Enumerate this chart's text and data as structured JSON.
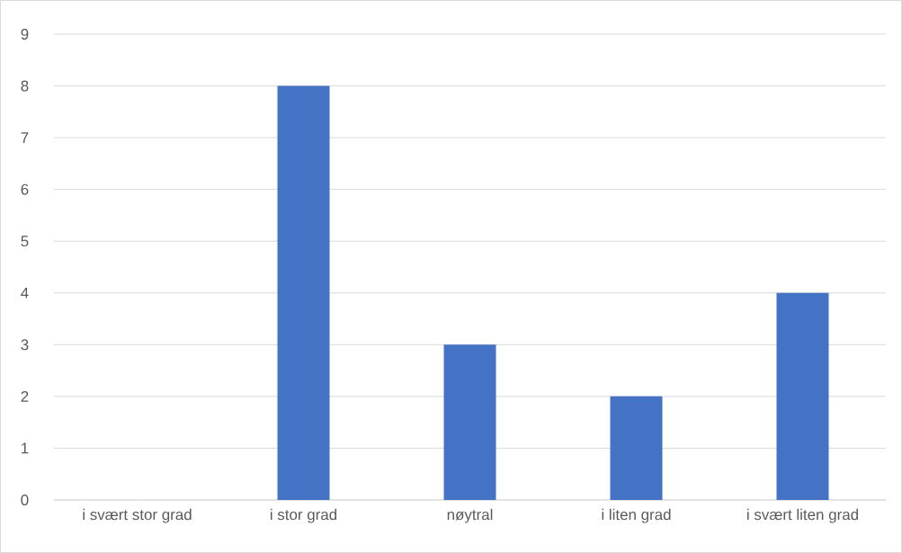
{
  "chart_data": {
    "type": "bar",
    "categories": [
      "i svært stor grad",
      "i stor grad",
      "nøytral",
      "i liten grad",
      "i svært liten grad"
    ],
    "values": [
      0,
      8,
      3,
      2,
      4
    ],
    "color": "#4472c4",
    "ylim": [
      0,
      9
    ],
    "yticks": [
      0,
      1,
      2,
      3,
      4,
      5,
      6,
      7,
      8,
      9
    ],
    "grid": "y"
  }
}
